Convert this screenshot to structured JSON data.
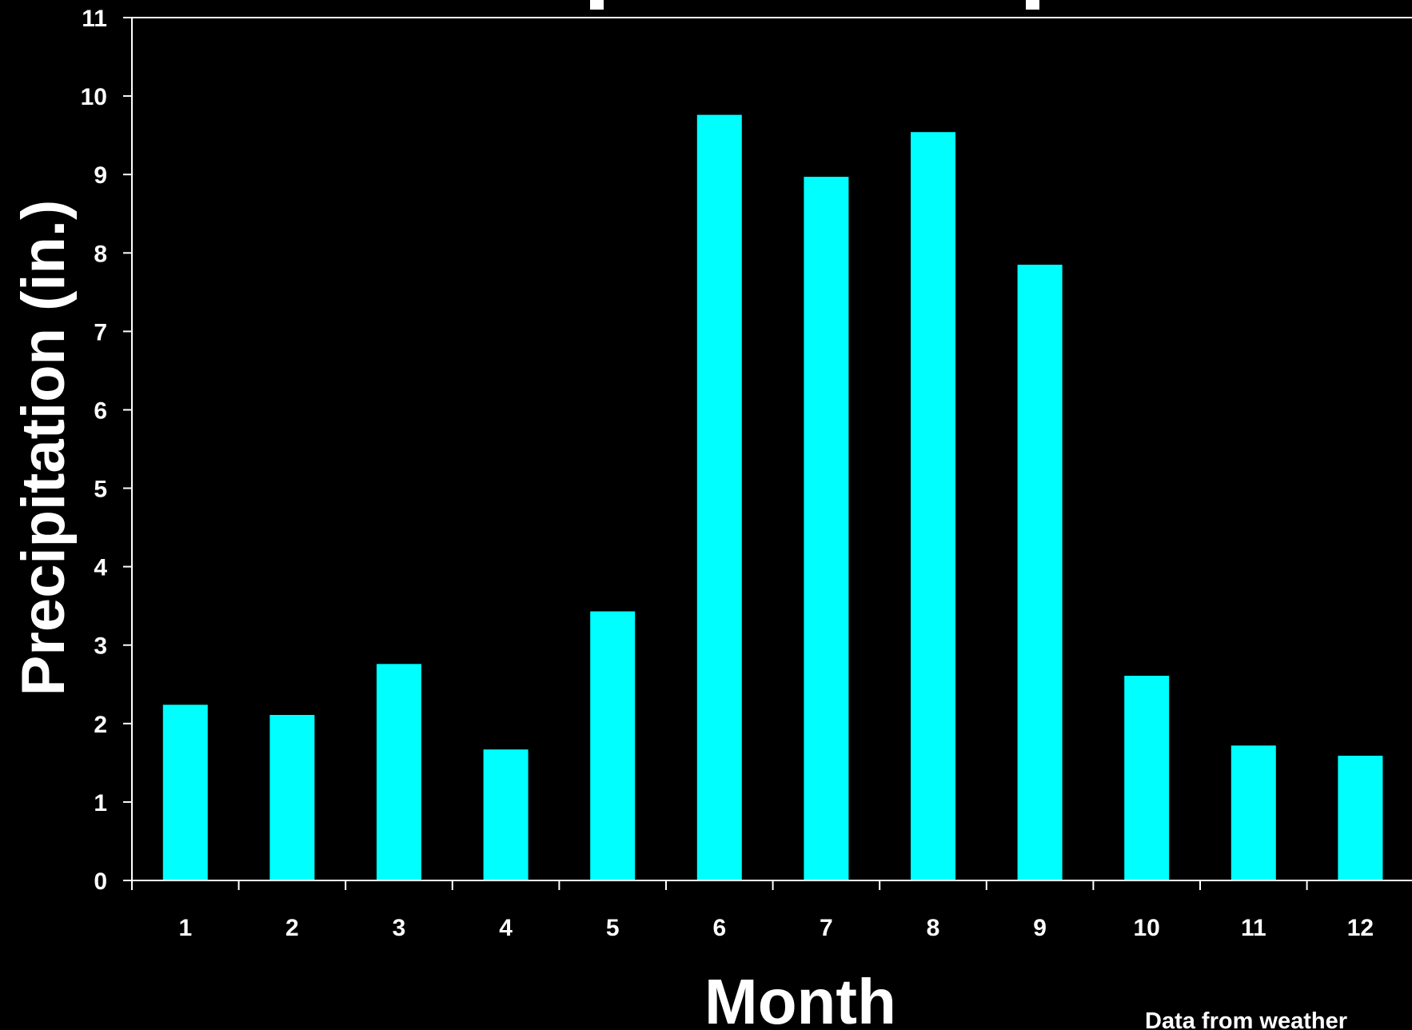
{
  "chart_data": {
    "type": "bar",
    "title": "",
    "xlabel": "Month",
    "ylabel": "Precipitation (in.)",
    "categories": [
      "1",
      "2",
      "3",
      "4",
      "5",
      "6",
      "7",
      "8",
      "9",
      "10",
      "11",
      "12"
    ],
    "values": [
      2.24,
      2.11,
      2.76,
      1.67,
      3.43,
      9.76,
      8.97,
      9.54,
      7.85,
      2.61,
      1.72,
      1.59
    ],
    "ylim": [
      0,
      11
    ],
    "yticks": [
      0,
      1,
      2,
      3,
      4,
      5,
      6,
      7,
      8,
      9,
      10,
      11
    ],
    "grid": false,
    "legend": "none",
    "bar_color": "#00FFFF",
    "background": "#000000",
    "axis_color": "#FFFFFF",
    "note": "Data from weather"
  }
}
